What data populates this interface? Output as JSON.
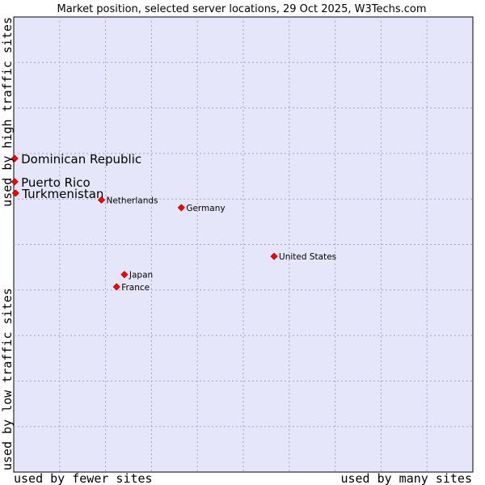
{
  "chart_data": {
    "type": "scatter",
    "title": "Market position, selected server locations, 29 Oct 2025, W3Techs.com",
    "xlabel_left": "used by fewer sites",
    "xlabel_right": "used by many sites",
    "ylabel_bottom": "used by low traffic sites",
    "ylabel_top": "used by high traffic sites",
    "xlim": [
      0,
      100
    ],
    "ylim": [
      0,
      100
    ],
    "grid": true,
    "points": [
      {
        "label": "Dominican Republic",
        "x": 0.2,
        "y": 68.9,
        "emphasis": true
      },
      {
        "label": "Puerto Rico",
        "x": 0.2,
        "y": 63.8,
        "emphasis": true
      },
      {
        "label": "Turkmenistan",
        "x": 0.4,
        "y": 61.3,
        "emphasis": true
      },
      {
        "label": "Netherlands",
        "x": 19.1,
        "y": 59.8,
        "emphasis": false
      },
      {
        "label": "Germany",
        "x": 36.5,
        "y": 58.1,
        "emphasis": false
      },
      {
        "label": "United States",
        "x": 56.7,
        "y": 47.4,
        "emphasis": false
      },
      {
        "label": "Japan",
        "x": 24.1,
        "y": 43.4,
        "emphasis": false
      },
      {
        "label": "France",
        "x": 22.4,
        "y": 40.7,
        "emphasis": false
      }
    ]
  },
  "colors": {
    "plot_bg": "#e6e6fa",
    "grid": "#a3a3c8",
    "border": "#000000",
    "point": "#ff0000"
  }
}
